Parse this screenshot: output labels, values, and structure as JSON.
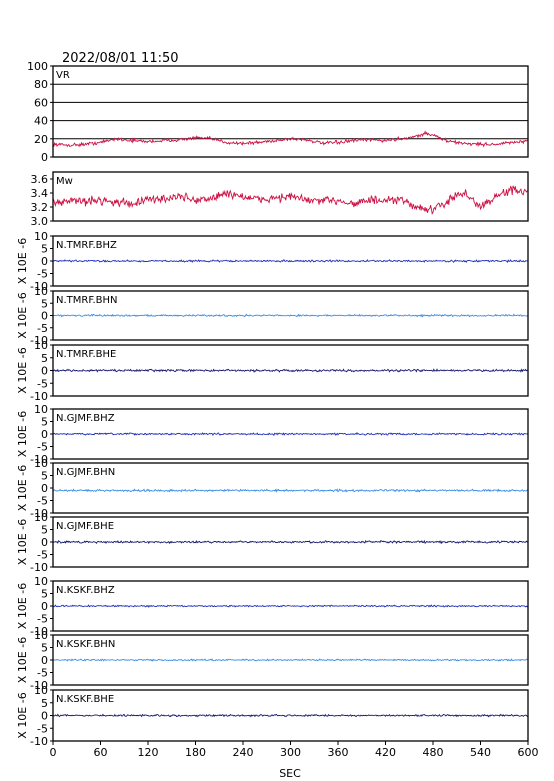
{
  "header": {
    "timestamp": "2022/08/01 11:50"
  },
  "chart_data": {
    "type": "line",
    "xlabel": "SEC",
    "xlim": [
      0,
      600
    ],
    "xticks": [
      0,
      60,
      120,
      180,
      240,
      300,
      360,
      420,
      480,
      540,
      600
    ],
    "panels": [
      {
        "id": "vr",
        "label": "VR",
        "color": "#cc1144",
        "ylim": [
          0,
          100
        ],
        "yticks": [
          0,
          20,
          40,
          60,
          80,
          100
        ],
        "grid": true,
        "series_x": [
          0,
          20,
          40,
          60,
          80,
          100,
          120,
          140,
          160,
          180,
          200,
          220,
          240,
          260,
          280,
          300,
          320,
          340,
          360,
          380,
          400,
          420,
          440,
          460,
          470,
          480,
          500,
          520,
          540,
          560,
          580,
          600
        ],
        "series_y": [
          14,
          13,
          14,
          16,
          20,
          18,
          17,
          18,
          19,
          21,
          20,
          16,
          15,
          16,
          18,
          20,
          19,
          15,
          16,
          18,
          19,
          18,
          20,
          23,
          26,
          24,
          17,
          15,
          14,
          14,
          16,
          17
        ],
        "noise": 1.8
      },
      {
        "id": "mw",
        "label": "Mw",
        "color": "#cc1144",
        "ylim": [
          3.0,
          3.7
        ],
        "yticks": [
          3.0,
          3.2,
          3.4,
          3.6
        ],
        "tick_decimals": 1,
        "grid": false,
        "series_x": [
          0,
          20,
          40,
          60,
          80,
          100,
          120,
          140,
          160,
          180,
          200,
          220,
          240,
          260,
          280,
          300,
          320,
          340,
          360,
          380,
          400,
          420,
          440,
          460,
          480,
          500,
          520,
          540,
          560,
          580,
          600
        ],
        "series_y": [
          3.25,
          3.3,
          3.28,
          3.3,
          3.27,
          3.25,
          3.3,
          3.32,
          3.35,
          3.3,
          3.32,
          3.4,
          3.35,
          3.3,
          3.33,
          3.35,
          3.3,
          3.28,
          3.3,
          3.25,
          3.3,
          3.28,
          3.3,
          3.2,
          3.15,
          3.3,
          3.4,
          3.2,
          3.35,
          3.45,
          3.4
        ],
        "noise": 0.06
      },
      {
        "id": "tmrf-bhz",
        "label": "N.TMRF.BHZ",
        "color": "#1f2db8",
        "ylim": [
          -10,
          10
        ],
        "yticks": [
          -10,
          -5,
          0,
          5,
          10
        ],
        "baseline": 0,
        "noise": 0.35
      },
      {
        "id": "tmrf-bhn",
        "label": "N.TMRF.BHN",
        "color": "#3a8ee6",
        "ylim": [
          -10,
          10
        ],
        "yticks": [
          -10,
          -5,
          0,
          5,
          10
        ],
        "baseline": 0,
        "noise": 0.35
      },
      {
        "id": "tmrf-bhe",
        "label": "N.TMRF.BHE",
        "color": "#14186e",
        "ylim": [
          -10,
          10
        ],
        "yticks": [
          -10,
          -5,
          0,
          5,
          10
        ],
        "baseline": 0,
        "noise": 0.4
      },
      {
        "id": "gjmf-bhz",
        "label": "N.GJMF.BHZ",
        "color": "#1f2db8",
        "ylim": [
          -10,
          10
        ],
        "yticks": [
          -10,
          -5,
          0,
          5,
          10
        ],
        "baseline": 0,
        "noise": 0.35
      },
      {
        "id": "gjmf-bhn",
        "label": "N.GJMF.BHN",
        "color": "#3a8ee6",
        "ylim": [
          -10,
          10
        ],
        "yticks": [
          -10,
          -5,
          0,
          5,
          10
        ],
        "baseline": -1,
        "noise": 0.4
      },
      {
        "id": "gjmf-bhe",
        "label": "N.GJMF.BHE",
        "color": "#14186e",
        "ylim": [
          -10,
          10
        ],
        "yticks": [
          -10,
          -5,
          0,
          5,
          10
        ],
        "baseline": 0,
        "noise": 0.4
      },
      {
        "id": "kskf-bhz",
        "label": "N.KSKF.BHZ",
        "color": "#1f2db8",
        "ylim": [
          -10,
          10
        ],
        "yticks": [
          -10,
          -5,
          0,
          5,
          10
        ],
        "baseline": 0,
        "noise": 0.3
      },
      {
        "id": "kskf-bhn",
        "label": "N.KSKF.BHN",
        "color": "#3a8ee6",
        "ylim": [
          -10,
          10
        ],
        "yticks": [
          -10,
          -5,
          0,
          5,
          10
        ],
        "baseline": 0,
        "noise": 0.3
      },
      {
        "id": "kskf-bhe",
        "label": "N.KSKF.BHE",
        "color": "#14186e",
        "ylim": [
          -10,
          10
        ],
        "yticks": [
          -10,
          -5,
          0,
          5,
          10
        ],
        "baseline": 0,
        "noise": 0.35
      }
    ],
    "group_ylabel": "X 10E -6"
  }
}
